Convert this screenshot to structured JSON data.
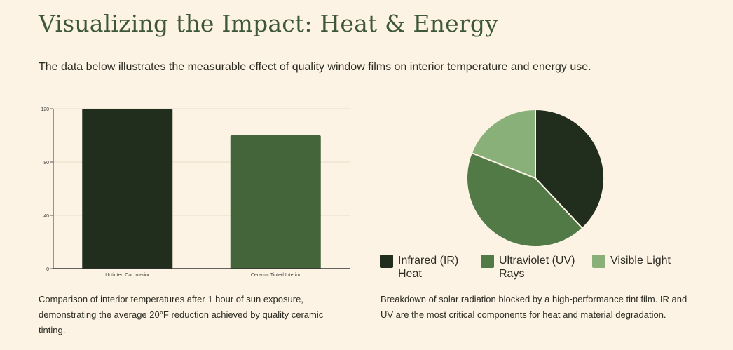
{
  "header": {
    "title": "Visualizing the Impact: Heat & Energy",
    "subtitle": "The data below illustrates the measurable effect of quality window films on interior temperature and energy use."
  },
  "colors": {
    "background": "#fdf3e4",
    "title": "#3d5738",
    "bar_untinted": "#212e1e",
    "bar_tinted": "#44653a",
    "pie_ir": "#212e1e",
    "pie_uv": "#527a46",
    "pie_visible": "#8ab07a",
    "grid": "#e6dccb"
  },
  "chart_data": [
    {
      "type": "bar",
      "categories": [
        "Untinted Car Interior",
        "Ceramic Tinted Interior"
      ],
      "values": [
        120,
        100
      ],
      "ylim": [
        0,
        120
      ],
      "yticks": [
        0,
        40,
        80,
        120
      ],
      "title": "",
      "xlabel": "",
      "ylabel": "",
      "grid": true
    },
    {
      "type": "pie",
      "categories": [
        "Infrared (IR) Heat",
        "Ultraviolet (UV) Rays",
        "Visible Light"
      ],
      "values": [
        38,
        43,
        19
      ],
      "legend": "bottom"
    }
  ],
  "captions": {
    "bar": "Comparison of interior temperatures after 1 hour of sun exposure, demonstrating the average 20°F reduction achieved by quality ceramic tinting.",
    "pie": "Breakdown of solar radiation blocked by a high-performance tint film. IR and UV are the most critical components for heat and material degradation."
  },
  "legend": {
    "items": [
      {
        "label": "Infrared (IR) Heat",
        "icon": "square-swatch"
      },
      {
        "label": "Ultraviolet (UV) Rays",
        "icon": "square-swatch"
      },
      {
        "label": "Visible Light",
        "icon": "square-swatch"
      }
    ]
  }
}
